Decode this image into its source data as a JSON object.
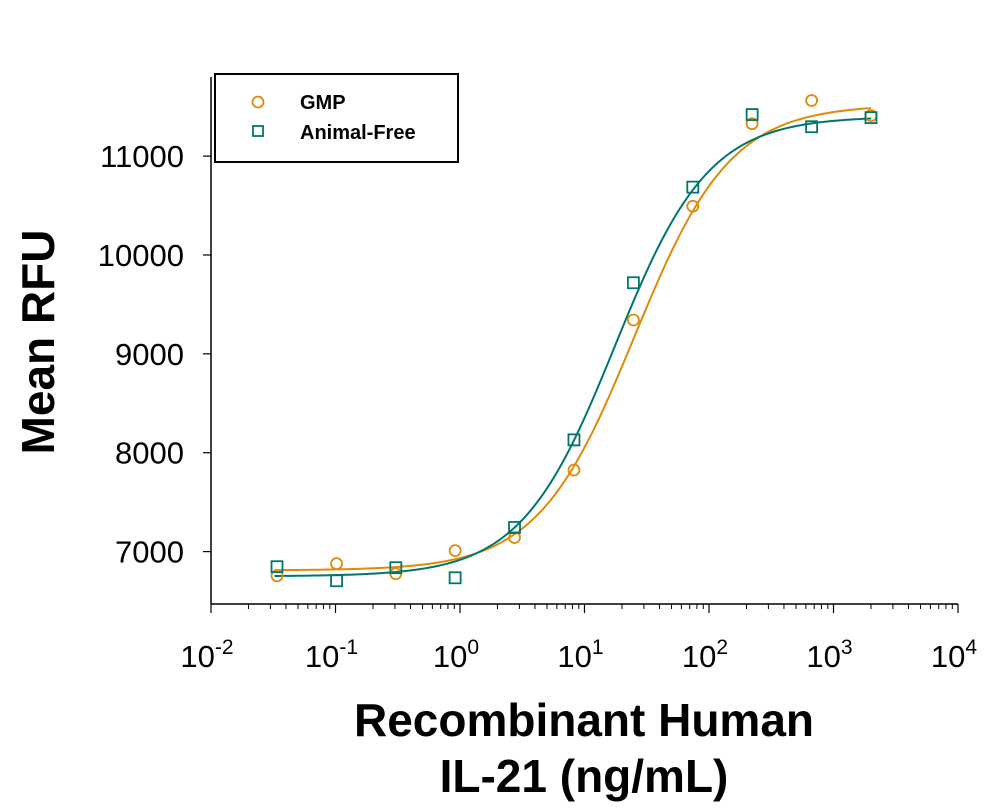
{
  "chart_data": {
    "type": "scatter",
    "title": "",
    "xlabel": [
      "Recombinant Human",
      "IL-21 (ng/mL)"
    ],
    "ylabel": "Mean RFU",
    "xscale": "log",
    "xlim": [
      0.01,
      10000
    ],
    "ylim": [
      6470,
      11800
    ],
    "x_ticks": [
      {
        "base": "10",
        "exp": "-2",
        "value": 0.01
      },
      {
        "base": "10",
        "exp": "-1",
        "value": 0.1
      },
      {
        "base": "10",
        "exp": "0",
        "value": 1
      },
      {
        "base": "10",
        "exp": "1",
        "value": 10
      },
      {
        "base": "10",
        "exp": "2",
        "value": 100
      },
      {
        "base": "10",
        "exp": "3",
        "value": 1000
      },
      {
        "base": "10",
        "exp": "4",
        "value": 10000
      }
    ],
    "y_ticks": [
      "7000",
      "8000",
      "9000",
      "10000",
      "11000"
    ],
    "grid": false,
    "legend": {
      "position": "top-left",
      "entries": [
        "GMP",
        "Animal-Free"
      ]
    },
    "x": [
      0.0339,
      0.102,
      0.305,
      0.914,
      2.74,
      8.23,
      24.7,
      74.1,
      222,
      667,
      2000
    ],
    "series": [
      {
        "name": "GMP",
        "marker": "circle",
        "color": "#E08A0A",
        "values": [
          6756,
          6878,
          6776,
          7010,
          7143,
          7825,
          9342,
          10493,
          11328,
          11562,
          11409
        ],
        "fit": {
          "model": "4PL",
          "bottom": 6810,
          "top": 11520,
          "ec50": 25,
          "hill": 1.12
        }
      },
      {
        "name": "Animal-Free",
        "marker": "square",
        "color": "#00766E",
        "values": [
          6847,
          6705,
          6837,
          6735,
          7244,
          8130,
          9719,
          10686,
          11420,
          11297,
          11389
        ],
        "fit": {
          "model": "4PL",
          "bottom": 6750,
          "top": 11400,
          "ec50": 17.5,
          "hill": 1.15
        }
      }
    ]
  }
}
